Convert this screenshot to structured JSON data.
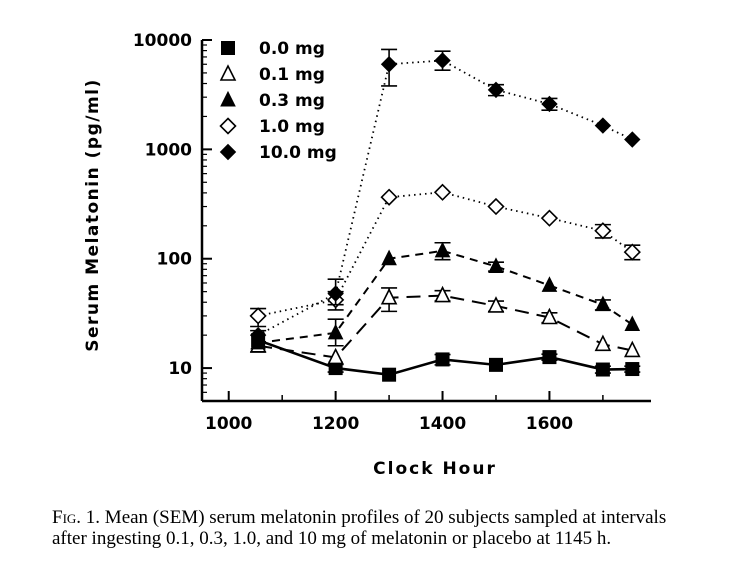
{
  "chart_data": {
    "type": "line",
    "xlabel": "Clock Hour",
    "ylabel": "Serum Melatonin (pg/ml)",
    "yscale": "log",
    "xlim": [
      950,
      1790
    ],
    "ylim": [
      5,
      10000
    ],
    "x_ticks": [
      1000,
      1200,
      1400,
      1600
    ],
    "x_tick_labels": [
      "1000",
      "1200",
      "1400",
      "1600"
    ],
    "y_ticks": [
      10,
      100,
      1000,
      10000
    ],
    "y_tick_labels": [
      "10",
      "100",
      "1000",
      "10000"
    ],
    "legend_position": "top-left",
    "series": [
      {
        "name": "0.0 mg",
        "marker": "square-filled",
        "line": "solid",
        "x": [
          1055,
          1200,
          1300,
          1400,
          1500,
          1600,
          1700,
          1755
        ],
        "y": [
          18,
          10,
          8.7,
          12,
          10.7,
          12.6,
          9.7,
          9.8
        ],
        "err": [
          [
            14,
            22
          ],
          [
            9.2,
            10.8
          ],
          null,
          [
            10.7,
            13.3
          ],
          null,
          [
            11.8,
            13.4
          ],
          [
            9.0,
            10.4
          ],
          [
            9.2,
            10.4
          ]
        ]
      },
      {
        "name": "0.1 mg",
        "marker": "triangle-open",
        "line": "long-dash",
        "x": [
          1055,
          1200,
          1300,
          1400,
          1500,
          1600,
          1700,
          1755
        ],
        "y": [
          16,
          12.5,
          44,
          46,
          37,
          29,
          16.5,
          14.5
        ],
        "err": [
          null,
          null,
          [
            33,
            54
          ],
          [
            41,
            51
          ],
          [
            33,
            41
          ],
          [
            26,
            32
          ],
          null,
          null
        ]
      },
      {
        "name": "0.3 mg",
        "marker": "triangle-filled",
        "line": "short-dash",
        "x": [
          1055,
          1200,
          1300,
          1400,
          1500,
          1600,
          1700,
          1755
        ],
        "y": [
          17,
          21,
          100,
          118,
          85,
          57,
          38,
          25
        ],
        "err": [
          null,
          [
            16,
            28
          ],
          null,
          [
            98,
            140
          ],
          [
            77,
            93
          ],
          null,
          [
            34,
            42
          ],
          null
        ]
      },
      {
        "name": "1.0 mg",
        "marker": "diamond-open",
        "line": "dotted",
        "x": [
          1055,
          1200,
          1300,
          1400,
          1500,
          1600,
          1700,
          1755
        ],
        "y": [
          30,
          42,
          365,
          405,
          300,
          235,
          180,
          115
        ],
        "err": [
          [
            24,
            35
          ],
          [
            34,
            50
          ],
          null,
          null,
          null,
          null,
          [
            155,
            205
          ],
          [
            98,
            133
          ]
        ]
      },
      {
        "name": "10.0 mg",
        "marker": "diamond-filled",
        "line": "dotted",
        "x": [
          1055,
          1200,
          1300,
          1400,
          1500,
          1600,
          1700,
          1755
        ],
        "y": [
          20,
          48,
          6000,
          6500,
          3500,
          2600,
          1650,
          1230
        ],
        "err": [
          null,
          [
            38,
            65
          ],
          [
            3800,
            8200
          ],
          [
            5300,
            7900
          ],
          [
            3100,
            3900
          ],
          [
            2280,
            2920
          ],
          null,
          null
        ]
      }
    ]
  },
  "caption": {
    "label": "Fig. 1.",
    "text": "Mean (SEM) serum melatonin profiles of 20 subjects sampled at intervals after ingesting 0.1, 0.3, 1.0, and 10 mg of melatonin or placebo at 1145 h."
  }
}
